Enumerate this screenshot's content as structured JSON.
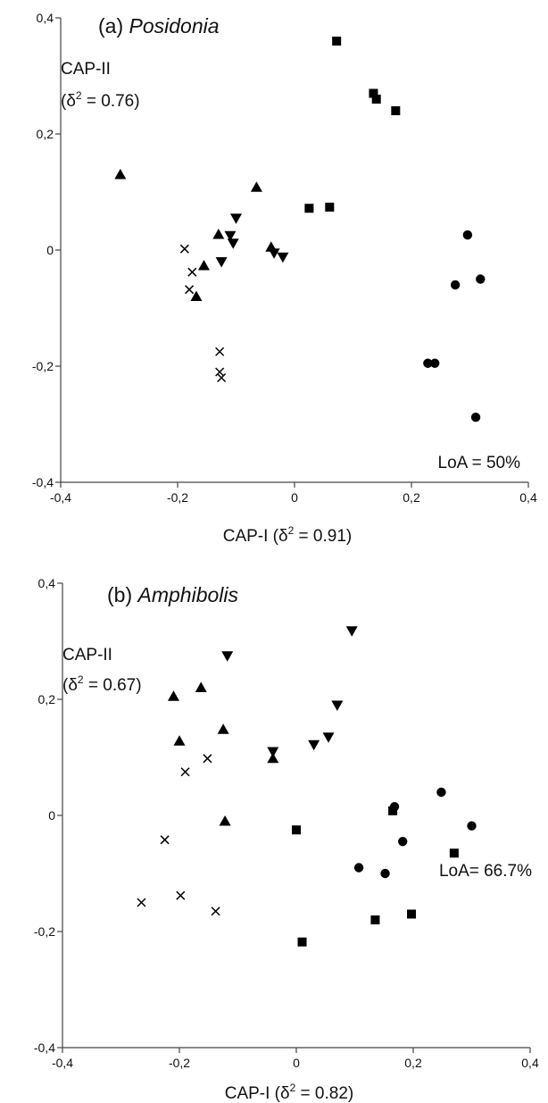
{
  "chart_data": [
    {
      "type": "scatter",
      "title_prefix": "(a) ",
      "title_species": "Posidonia",
      "xlabel": "CAP-I (δ² = 0.91)",
      "ylabel": [
        "CAP-II",
        "(δ² = 0.76)"
      ],
      "xlim": [
        -0.4,
        0.4
      ],
      "ylim": [
        -0.4,
        0.4
      ],
      "xticks": [
        "-0,4",
        "-0,2",
        "0",
        "0,2",
        "0,4"
      ],
      "yticks": [
        "0,4",
        "0,2",
        "0",
        "-0,2",
        "-0,4"
      ],
      "annotation": "LoA = 50%",
      "grid": false,
      "series": [
        {
          "marker": "square",
          "points": [
            [
              0.072,
              0.36
            ],
            [
              0.135,
              0.27
            ],
            [
              0.14,
              0.26
            ],
            [
              0.173,
              0.24
            ],
            [
              0.025,
              0.072
            ],
            [
              0.06,
              0.074
            ]
          ]
        },
        {
          "marker": "circle",
          "points": [
            [
              0.296,
              0.026
            ],
            [
              0.275,
              -0.06
            ],
            [
              0.318,
              -0.05
            ],
            [
              0.228,
              -0.195
            ],
            [
              0.24,
              -0.195
            ],
            [
              0.31,
              -0.288
            ]
          ]
        },
        {
          "marker": "triangle-up",
          "points": [
            [
              -0.298,
              0.13
            ],
            [
              -0.065,
              0.108
            ],
            [
              -0.13,
              0.027
            ],
            [
              -0.155,
              -0.027
            ],
            [
              -0.168,
              -0.08
            ],
            [
              -0.04,
              0.005
            ]
          ]
        },
        {
          "marker": "triangle-down",
          "points": [
            [
              -0.1,
              0.055
            ],
            [
              -0.11,
              0.025
            ],
            [
              -0.105,
              0.012
            ],
            [
              -0.125,
              -0.02
            ],
            [
              -0.035,
              -0.005
            ],
            [
              -0.02,
              -0.012
            ]
          ]
        },
        {
          "marker": "cross",
          "points": [
            [
              -0.188,
              0.002
            ],
            [
              -0.175,
              -0.038
            ],
            [
              -0.18,
              -0.068
            ],
            [
              -0.128,
              -0.175
            ],
            [
              -0.128,
              -0.21
            ],
            [
              -0.125,
              -0.22
            ]
          ]
        }
      ]
    },
    {
      "type": "scatter",
      "title_prefix": "(b) ",
      "title_species": "Amphibolis",
      "xlabel": "CAP-I (δ² = 0.82)",
      "ylabel": [
        "CAP-II",
        "(δ² = 0.67)"
      ],
      "xlim": [
        -0.4,
        0.4
      ],
      "ylim": [
        -0.4,
        0.4
      ],
      "xticks": [
        "-0,4",
        "-0,2",
        "0",
        "0,2",
        "0,4"
      ],
      "yticks": [
        "0,4",
        "0,2",
        "0",
        "-0,2",
        "-0,4"
      ],
      "annotation": "LoA= 66.7%",
      "grid": false,
      "series": [
        {
          "marker": "square",
          "points": [
            [
              0.165,
              0.008
            ],
            [
              0.0,
              -0.025
            ],
            [
              0.27,
              -0.065
            ],
            [
              0.135,
              -0.18
            ],
            [
              0.197,
              -0.17
            ],
            [
              0.01,
              -0.218
            ]
          ]
        },
        {
          "marker": "circle",
          "points": [
            [
              0.168,
              0.015
            ],
            [
              0.248,
              0.04
            ],
            [
              0.3,
              -0.018
            ],
            [
              0.182,
              -0.045
            ],
            [
              0.107,
              -0.09
            ],
            [
              0.152,
              -0.1
            ]
          ]
        },
        {
          "marker": "triangle-up",
          "points": [
            [
              -0.21,
              0.205
            ],
            [
              -0.163,
              0.22
            ],
            [
              -0.2,
              0.128
            ],
            [
              -0.125,
              0.148
            ],
            [
              -0.04,
              0.098
            ],
            [
              -0.122,
              -0.01
            ]
          ]
        },
        {
          "marker": "triangle-down",
          "points": [
            [
              0.095,
              0.318
            ],
            [
              -0.118,
              0.275
            ],
            [
              0.07,
              0.19
            ],
            [
              0.03,
              0.122
            ],
            [
              0.055,
              0.135
            ],
            [
              -0.04,
              0.11
            ]
          ]
        },
        {
          "marker": "cross",
          "points": [
            [
              -0.19,
              0.075
            ],
            [
              -0.152,
              0.098
            ],
            [
              -0.225,
              -0.042
            ],
            [
              -0.198,
              -0.138
            ],
            [
              -0.265,
              -0.15
            ],
            [
              -0.138,
              -0.165
            ]
          ]
        }
      ]
    }
  ]
}
